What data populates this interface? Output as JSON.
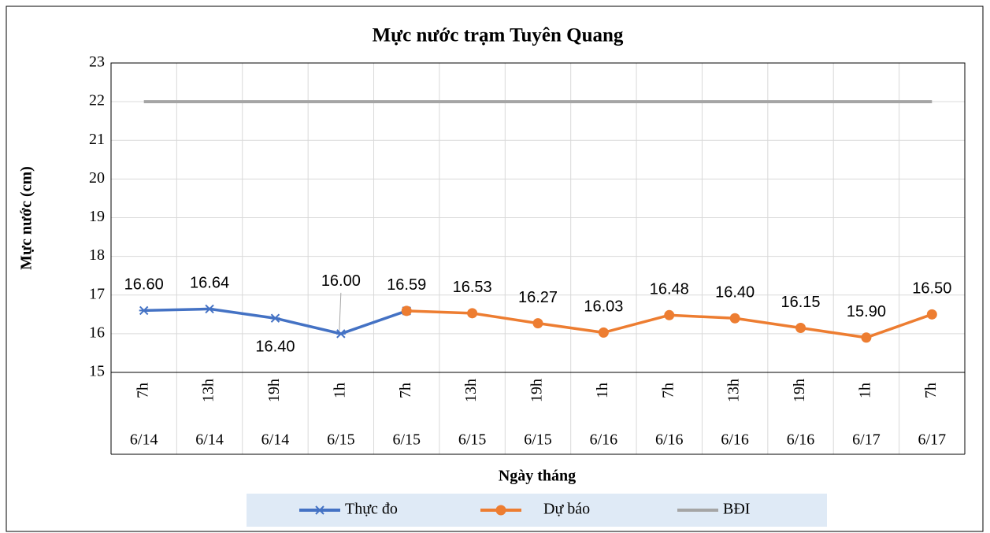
{
  "chart_data": {
    "type": "line",
    "title": "Mực nước trạm Tuyên Quang",
    "y_label": "Mực nước (cm)",
    "x_label": "Ngày tháng",
    "categories": [
      "7h",
      "13h",
      "19h",
      "1h",
      "7h",
      "13h",
      "19h",
      "1h",
      "7h",
      "13h",
      "19h",
      "1h",
      "7h"
    ],
    "dates": [
      "6/14",
      "6/14",
      "6/14",
      "6/15",
      "6/15",
      "6/15",
      "6/15",
      "6/16",
      "6/16",
      "6/16",
      "6/16",
      "6/17",
      "6/17"
    ],
    "series": [
      {
        "name": "Thực đo",
        "color": "#4472c4",
        "marker": "asterisk",
        "values": [
          16.6,
          16.64,
          16.4,
          16.0,
          16.59,
          null,
          null,
          null,
          null,
          null,
          null,
          null,
          null
        ],
        "value_labels": [
          "16.60",
          "16.64",
          "16.40",
          "16.00",
          "16.59",
          null,
          null,
          null,
          null,
          null,
          null,
          null,
          null
        ]
      },
      {
        "name": "Dự báo",
        "color": "#ed7d31",
        "marker": "circle",
        "values": [
          null,
          null,
          null,
          null,
          16.59,
          16.53,
          16.27,
          16.03,
          16.48,
          16.4,
          16.15,
          15.9,
          16.5
        ],
        "value_labels": [
          null,
          null,
          null,
          null,
          null,
          "16.53",
          "16.27",
          "16.03",
          "16.48",
          "16.40",
          "16.15",
          "15.90",
          "16.50"
        ]
      },
      {
        "name": "BĐI",
        "color": "#a5a5a5",
        "marker": "none",
        "values": [
          22,
          22,
          22,
          22,
          22,
          22,
          22,
          22,
          22,
          22,
          22,
          22,
          22
        ]
      }
    ],
    "ylim": [
      15,
      23
    ],
    "yticks": [
      15,
      16,
      17,
      18,
      19,
      20,
      21,
      22,
      23
    ],
    "grid": true,
    "legend": "bottom"
  }
}
